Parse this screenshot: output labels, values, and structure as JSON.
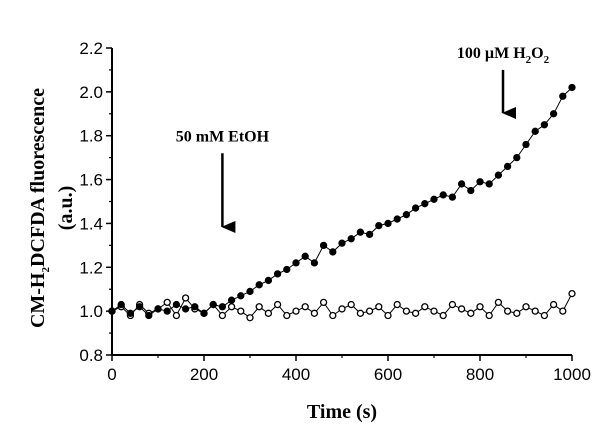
{
  "chart_data": {
    "type": "scatter",
    "title": "",
    "xlabel": "Time (s)",
    "ylabel_parts": [
      "CM-H",
      "2",
      "DCFDA fluorescence"
    ],
    "ylabel_line2": "(a.u.)",
    "xlim": [
      0,
      1000
    ],
    "ylim": [
      0.8,
      2.2
    ],
    "xticks": [
      "0",
      "200",
      "400",
      "600",
      "800",
      "1000"
    ],
    "yticks": [
      "0.8",
      "1.0",
      "1.2",
      "1.4",
      "1.6",
      "1.8",
      "2.0",
      "2.2"
    ],
    "grid": false,
    "legend": "none",
    "series": [
      {
        "marker": "filled-circle",
        "color": "#000000",
        "line": true,
        "x": [
          0,
          20,
          40,
          60,
          80,
          100,
          120,
          140,
          160,
          180,
          200,
          220,
          240,
          260,
          280,
          300,
          320,
          340,
          360,
          380,
          400,
          420,
          440,
          460,
          480,
          500,
          520,
          540,
          560,
          580,
          600,
          620,
          640,
          660,
          680,
          700,
          720,
          740,
          760,
          780,
          800,
          820,
          840,
          860,
          880,
          900,
          920,
          940,
          960,
          980,
          1000
        ],
        "y": [
          1.0,
          1.03,
          0.99,
          1.02,
          0.98,
          1.01,
          1.0,
          1.03,
          1.01,
          1.02,
          0.99,
          1.03,
          1.02,
          1.05,
          1.07,
          1.09,
          1.12,
          1.14,
          1.17,
          1.19,
          1.22,
          1.25,
          1.22,
          1.3,
          1.27,
          1.31,
          1.33,
          1.36,
          1.35,
          1.39,
          1.4,
          1.42,
          1.44,
          1.47,
          1.49,
          1.51,
          1.53,
          1.52,
          1.58,
          1.55,
          1.59,
          1.58,
          1.62,
          1.66,
          1.7,
          1.76,
          1.82,
          1.85,
          1.9,
          1.98,
          2.02
        ]
      },
      {
        "marker": "open-circle",
        "color": "#000000",
        "line": true,
        "x": [
          0,
          20,
          40,
          60,
          80,
          100,
          120,
          140,
          160,
          180,
          200,
          220,
          240,
          260,
          280,
          300,
          320,
          340,
          360,
          380,
          400,
          420,
          440,
          460,
          480,
          500,
          520,
          540,
          560,
          580,
          600,
          620,
          640,
          660,
          680,
          700,
          720,
          740,
          760,
          780,
          800,
          820,
          840,
          860,
          880,
          900,
          920,
          940,
          960,
          980,
          1000
        ],
        "y": [
          1.0,
          1.02,
          0.98,
          1.03,
          0.99,
          1.01,
          1.04,
          0.98,
          1.06,
          1.01,
          0.99,
          1.03,
          0.98,
          1.02,
          1.0,
          0.97,
          1.02,
          0.99,
          1.03,
          0.98,
          1.0,
          1.02,
          0.99,
          1.04,
          0.98,
          1.01,
          1.03,
          0.99,
          1.0,
          1.02,
          0.98,
          1.03,
          1.0,
          0.99,
          1.02,
          1.0,
          0.98,
          1.03,
          1.01,
          0.99,
          1.02,
          0.98,
          1.04,
          1.0,
          0.99,
          1.02,
          1.0,
          0.98,
          1.03,
          1.0,
          1.08
        ]
      }
    ],
    "annotations": [
      {
        "parts": [
          "50 mM EtOH"
        ],
        "x": 240,
        "y_tip": 1.32,
        "y_tail": 1.72
      },
      {
        "parts": [
          "100 µM H",
          "2",
          "O",
          "2"
        ],
        "x": 850,
        "y_tip": 1.84,
        "y_tail": 2.1
      }
    ]
  }
}
